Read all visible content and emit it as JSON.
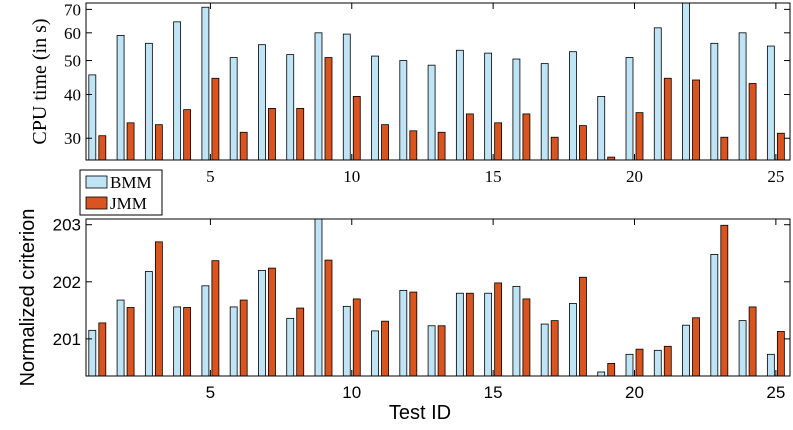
{
  "chart_data": [
    {
      "type": "bar",
      "ylabel": "CPU time (in s)",
      "yscale": "log",
      "ylim": [
        26,
        73
      ],
      "yticks": [
        30,
        40,
        50,
        60,
        70
      ],
      "xticks": [
        5,
        10,
        15,
        20,
        25
      ],
      "xlim": [
        0.6,
        25.5
      ],
      "grid": false,
      "legend_position": "bottom-left",
      "categories": [
        1,
        2,
        3,
        4,
        5,
        6,
        7,
        8,
        9,
        10,
        11,
        12,
        13,
        14,
        15,
        16,
        17,
        18,
        19,
        20,
        21,
        22,
        23,
        24,
        25
      ],
      "series": [
        {
          "name": "BMM",
          "color": "#bfe4f5",
          "values": [
            45.5,
            59,
            56,
            64.5,
            71,
            51,
            55.5,
            52,
            60,
            59.5,
            51.5,
            50,
            48.5,
            53.5,
            52.5,
            50.5,
            49,
            53,
            39.5,
            51,
            62,
            74,
            56,
            60,
            55
          ]
        },
        {
          "name": "JMM",
          "color": "#d9541e",
          "values": [
            30.5,
            33.2,
            32.8,
            36.2,
            44.5,
            31.2,
            36.5,
            36.5,
            51,
            39.5,
            32.8,
            31.5,
            31.2,
            35.2,
            33.2,
            35.2,
            30.2,
            32.6,
            26.5,
            35.5,
            44.5,
            44,
            30.2,
            43,
            31
          ]
        }
      ]
    },
    {
      "type": "bar",
      "xlabel": "Test ID",
      "ylabel": "Normalized criterion",
      "ylim": [
        200.35,
        203.1
      ],
      "yticks": [
        201,
        202,
        203
      ],
      "xticks": [
        5,
        10,
        15,
        20,
        25
      ],
      "xlim": [
        0.6,
        25.5
      ],
      "grid": false,
      "categories": [
        1,
        2,
        3,
        4,
        5,
        6,
        7,
        8,
        9,
        10,
        11,
        12,
        13,
        14,
        15,
        16,
        17,
        18,
        19,
        20,
        21,
        22,
        23,
        24,
        25
      ],
      "series": [
        {
          "name": "BMM",
          "color": "#bfe4f5",
          "values": [
            201.15,
            201.68,
            202.18,
            201.56,
            201.93,
            201.56,
            202.2,
            201.36,
            203.3,
            201.57,
            201.14,
            201.85,
            201.23,
            201.8,
            201.8,
            201.92,
            201.26,
            201.62,
            200.42,
            200.73,
            200.8,
            201.24,
            202.48,
            201.32,
            200.73
          ]
        },
        {
          "name": "JMM",
          "color": "#d9541e",
          "values": [
            201.28,
            201.55,
            202.7,
            201.55,
            202.37,
            201.68,
            202.24,
            201.54,
            202.38,
            201.7,
            201.31,
            201.82,
            201.23,
            201.8,
            201.98,
            201.7,
            201.32,
            202.08,
            200.57,
            200.82,
            200.87,
            201.37,
            202.99,
            201.56,
            201.13
          ]
        }
      ]
    }
  ]
}
